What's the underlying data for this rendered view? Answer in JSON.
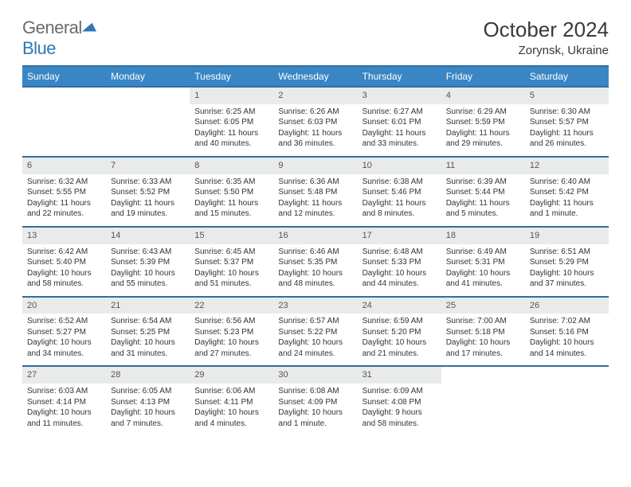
{
  "logo": {
    "word1": "General",
    "word2": "Blue"
  },
  "title": "October 2024",
  "location": "Zorynsk, Ukraine",
  "colors": {
    "header_bg": "#3a86c5",
    "header_border": "#2f6ea3",
    "daynum_bg": "#e9eaea",
    "text": "#333333",
    "logo_gray": "#6b6b6b",
    "logo_blue": "#2f77b6"
  },
  "weekdays": [
    "Sunday",
    "Monday",
    "Tuesday",
    "Wednesday",
    "Thursday",
    "Friday",
    "Saturday"
  ],
  "weeks": [
    [
      null,
      null,
      {
        "n": "1",
        "sr": "Sunrise: 6:25 AM",
        "ss": "Sunset: 6:05 PM",
        "dl1": "Daylight: 11 hours",
        "dl2": "and 40 minutes."
      },
      {
        "n": "2",
        "sr": "Sunrise: 6:26 AM",
        "ss": "Sunset: 6:03 PM",
        "dl1": "Daylight: 11 hours",
        "dl2": "and 36 minutes."
      },
      {
        "n": "3",
        "sr": "Sunrise: 6:27 AM",
        "ss": "Sunset: 6:01 PM",
        "dl1": "Daylight: 11 hours",
        "dl2": "and 33 minutes."
      },
      {
        "n": "4",
        "sr": "Sunrise: 6:29 AM",
        "ss": "Sunset: 5:59 PM",
        "dl1": "Daylight: 11 hours",
        "dl2": "and 29 minutes."
      },
      {
        "n": "5",
        "sr": "Sunrise: 6:30 AM",
        "ss": "Sunset: 5:57 PM",
        "dl1": "Daylight: 11 hours",
        "dl2": "and 26 minutes."
      }
    ],
    [
      {
        "n": "6",
        "sr": "Sunrise: 6:32 AM",
        "ss": "Sunset: 5:55 PM",
        "dl1": "Daylight: 11 hours",
        "dl2": "and 22 minutes."
      },
      {
        "n": "7",
        "sr": "Sunrise: 6:33 AM",
        "ss": "Sunset: 5:52 PM",
        "dl1": "Daylight: 11 hours",
        "dl2": "and 19 minutes."
      },
      {
        "n": "8",
        "sr": "Sunrise: 6:35 AM",
        "ss": "Sunset: 5:50 PM",
        "dl1": "Daylight: 11 hours",
        "dl2": "and 15 minutes."
      },
      {
        "n": "9",
        "sr": "Sunrise: 6:36 AM",
        "ss": "Sunset: 5:48 PM",
        "dl1": "Daylight: 11 hours",
        "dl2": "and 12 minutes."
      },
      {
        "n": "10",
        "sr": "Sunrise: 6:38 AM",
        "ss": "Sunset: 5:46 PM",
        "dl1": "Daylight: 11 hours",
        "dl2": "and 8 minutes."
      },
      {
        "n": "11",
        "sr": "Sunrise: 6:39 AM",
        "ss": "Sunset: 5:44 PM",
        "dl1": "Daylight: 11 hours",
        "dl2": "and 5 minutes."
      },
      {
        "n": "12",
        "sr": "Sunrise: 6:40 AM",
        "ss": "Sunset: 5:42 PM",
        "dl1": "Daylight: 11 hours",
        "dl2": "and 1 minute."
      }
    ],
    [
      {
        "n": "13",
        "sr": "Sunrise: 6:42 AM",
        "ss": "Sunset: 5:40 PM",
        "dl1": "Daylight: 10 hours",
        "dl2": "and 58 minutes."
      },
      {
        "n": "14",
        "sr": "Sunrise: 6:43 AM",
        "ss": "Sunset: 5:39 PM",
        "dl1": "Daylight: 10 hours",
        "dl2": "and 55 minutes."
      },
      {
        "n": "15",
        "sr": "Sunrise: 6:45 AM",
        "ss": "Sunset: 5:37 PM",
        "dl1": "Daylight: 10 hours",
        "dl2": "and 51 minutes."
      },
      {
        "n": "16",
        "sr": "Sunrise: 6:46 AM",
        "ss": "Sunset: 5:35 PM",
        "dl1": "Daylight: 10 hours",
        "dl2": "and 48 minutes."
      },
      {
        "n": "17",
        "sr": "Sunrise: 6:48 AM",
        "ss": "Sunset: 5:33 PM",
        "dl1": "Daylight: 10 hours",
        "dl2": "and 44 minutes."
      },
      {
        "n": "18",
        "sr": "Sunrise: 6:49 AM",
        "ss": "Sunset: 5:31 PM",
        "dl1": "Daylight: 10 hours",
        "dl2": "and 41 minutes."
      },
      {
        "n": "19",
        "sr": "Sunrise: 6:51 AM",
        "ss": "Sunset: 5:29 PM",
        "dl1": "Daylight: 10 hours",
        "dl2": "and 37 minutes."
      }
    ],
    [
      {
        "n": "20",
        "sr": "Sunrise: 6:52 AM",
        "ss": "Sunset: 5:27 PM",
        "dl1": "Daylight: 10 hours",
        "dl2": "and 34 minutes."
      },
      {
        "n": "21",
        "sr": "Sunrise: 6:54 AM",
        "ss": "Sunset: 5:25 PM",
        "dl1": "Daylight: 10 hours",
        "dl2": "and 31 minutes."
      },
      {
        "n": "22",
        "sr": "Sunrise: 6:56 AM",
        "ss": "Sunset: 5:23 PM",
        "dl1": "Daylight: 10 hours",
        "dl2": "and 27 minutes."
      },
      {
        "n": "23",
        "sr": "Sunrise: 6:57 AM",
        "ss": "Sunset: 5:22 PM",
        "dl1": "Daylight: 10 hours",
        "dl2": "and 24 minutes."
      },
      {
        "n": "24",
        "sr": "Sunrise: 6:59 AM",
        "ss": "Sunset: 5:20 PM",
        "dl1": "Daylight: 10 hours",
        "dl2": "and 21 minutes."
      },
      {
        "n": "25",
        "sr": "Sunrise: 7:00 AM",
        "ss": "Sunset: 5:18 PM",
        "dl1": "Daylight: 10 hours",
        "dl2": "and 17 minutes."
      },
      {
        "n": "26",
        "sr": "Sunrise: 7:02 AM",
        "ss": "Sunset: 5:16 PM",
        "dl1": "Daylight: 10 hours",
        "dl2": "and 14 minutes."
      }
    ],
    [
      {
        "n": "27",
        "sr": "Sunrise: 6:03 AM",
        "ss": "Sunset: 4:14 PM",
        "dl1": "Daylight: 10 hours",
        "dl2": "and 11 minutes."
      },
      {
        "n": "28",
        "sr": "Sunrise: 6:05 AM",
        "ss": "Sunset: 4:13 PM",
        "dl1": "Daylight: 10 hours",
        "dl2": "and 7 minutes."
      },
      {
        "n": "29",
        "sr": "Sunrise: 6:06 AM",
        "ss": "Sunset: 4:11 PM",
        "dl1": "Daylight: 10 hours",
        "dl2": "and 4 minutes."
      },
      {
        "n": "30",
        "sr": "Sunrise: 6:08 AM",
        "ss": "Sunset: 4:09 PM",
        "dl1": "Daylight: 10 hours",
        "dl2": "and 1 minute."
      },
      {
        "n": "31",
        "sr": "Sunrise: 6:09 AM",
        "ss": "Sunset: 4:08 PM",
        "dl1": "Daylight: 9 hours",
        "dl2": "and 58 minutes."
      },
      null,
      null
    ]
  ]
}
